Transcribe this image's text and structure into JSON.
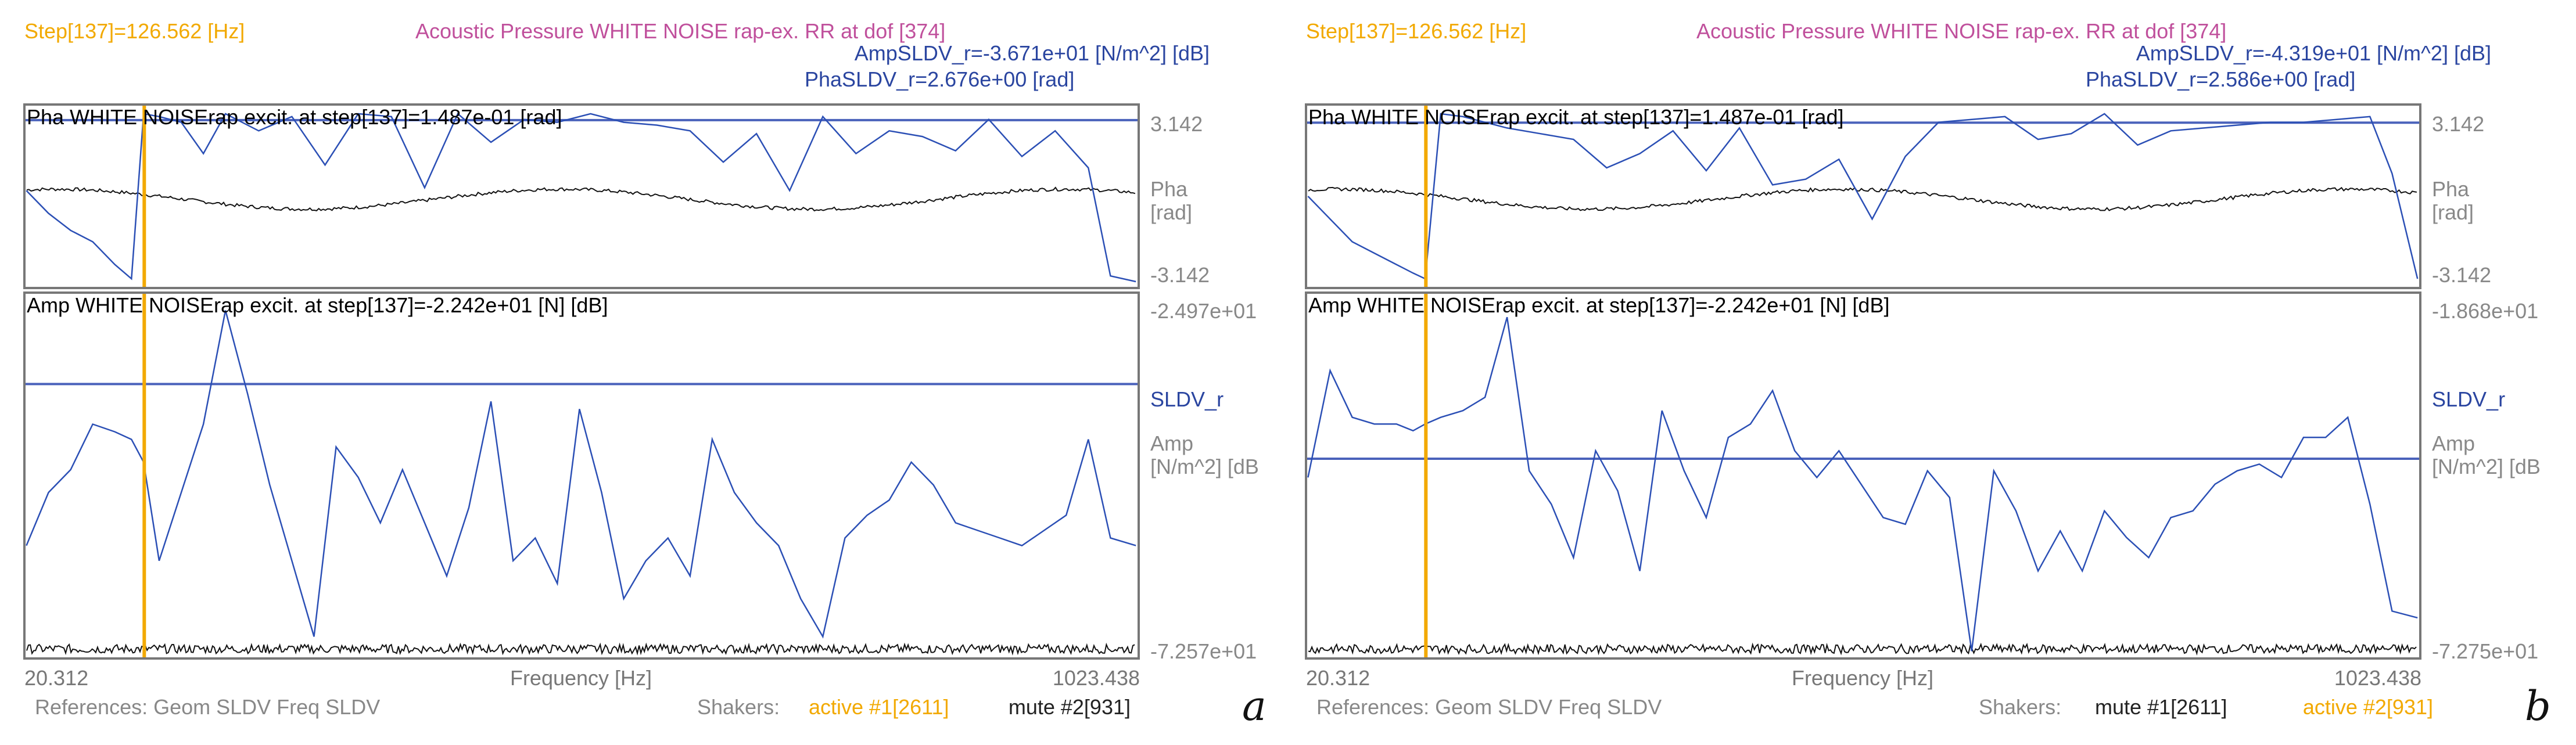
{
  "colors": {
    "step": "#f2a900",
    "title": "#c0509c",
    "blue": "#2a45a0",
    "trace": "#2b4fb5",
    "box": "#777777",
    "grey": "#888888",
    "noise": "#111111",
    "cursor": "#f2a900"
  },
  "panels": [
    {
      "letter": "a",
      "step_label": "Step[137]=126.562 [Hz]",
      "title": "Acoustic Pressure WHITE NOISE rap-ex. RR at dof [374]",
      "amp_readout": "AmpSLDV_r=-3.671e+01 [N/m^2] [dB]",
      "pha_readout": "PhaSLDV_r=2.676e+00 [rad]",
      "pha_plot": {
        "header": "Pha WHITE NOISErap excit. at step[137]=1.487e-01 [rad]",
        "ymax_label": "3.142",
        "ymin_label": "-3.142",
        "side_label_1": "Pha",
        "side_label_2": "[rad]",
        "hline_value": 2.676
      },
      "amp_plot": {
        "header": "Amp WHITE NOISErap excit. at step[137]=-2.242e+01 [N] [dB]",
        "ymax_label": "-2.497e+01",
        "ymin_label": "-7.257e+01",
        "series_label": "SLDV_r",
        "side_label_1": "Amp",
        "side_label_2": "[N/m^2] [dB",
        "hline_value": -36.71
      },
      "x_min_label": "20.312",
      "x_max_label": "1023.438",
      "x_axis_label": "Frequency [Hz]",
      "references": "References: Geom SLDV Freq SLDV",
      "shakers_label": "Shakers:",
      "shaker_1": "active #1[2611]",
      "shaker_1_state": "active",
      "shaker_2": "mute #2[931]",
      "shaker_2_state": "mute"
    },
    {
      "letter": "b",
      "step_label": "Step[137]=126.562 [Hz]",
      "title": "Acoustic Pressure WHITE NOISE rap-ex. RR at dof [374]",
      "amp_readout": "AmpSLDV_r=-4.319e+01 [N/m^2] [dB]",
      "pha_readout": "PhaSLDV_r=2.586e+00 [rad]",
      "pha_plot": {
        "header": "Pha WHITE NOISErap excit. at step[137]=1.487e-01 [rad]",
        "ymax_label": "3.142",
        "ymin_label": "-3.142",
        "side_label_1": "Pha",
        "side_label_2": "[rad]",
        "hline_value": 2.586
      },
      "amp_plot": {
        "header": "Amp WHITE NOISErap excit. at step[137]=-2.242e+01 [N] [dB]",
        "ymax_label": "-1.868e+01",
        "ymin_label": "-7.275e+01",
        "series_label": "SLDV_r",
        "side_label_1": "Amp",
        "side_label_2": "[N/m^2] [dB",
        "hline_value": -43.19
      },
      "x_min_label": "20.312",
      "x_max_label": "1023.438",
      "x_axis_label": "Frequency [Hz]",
      "references": "References: Geom SLDV Freq SLDV",
      "shakers_label": "Shakers:",
      "shaker_1": "mute #1[2611]",
      "shaker_1_state": "mute",
      "shaker_2": "active #2[931]",
      "shaker_2_state": "active"
    }
  ],
  "chart_data": [
    {
      "type": "line",
      "panel": "a",
      "x_label": "Frequency [Hz]",
      "x_range": [
        20.312,
        1023.438
      ],
      "cursor_x": 126.562,
      "subplots": [
        {
          "name": "phase",
          "y_range": [
            -3.142,
            3.142
          ],
          "y_unit": "rad",
          "reference_line": 2.676,
          "series": [
            {
              "name": "SLDV_r",
              "x": [
                20,
                40,
                60,
                80,
                100,
                115,
                126,
                140,
                160,
                180,
                200,
                230,
                260,
                290,
                320,
                350,
                380,
                410,
                440,
                470,
                500,
                530,
                560,
                590,
                620,
                650,
                680,
                710,
                740,
                770,
                800,
                830,
                860,
                890,
                920,
                950,
                980,
                1000,
                1023
              ],
              "y": [
                0.2,
                -0.6,
                -1.2,
                -1.6,
                -2.4,
                -2.9,
                2.9,
                2.8,
                2.6,
                1.5,
                2.9,
                2.3,
                2.8,
                1.1,
                2.9,
                2.8,
                0.3,
                2.9,
                1.9,
                2.7,
                2.6,
                2.9,
                2.6,
                2.5,
                2.3,
                1.2,
                2.2,
                0.2,
                2.8,
                1.5,
                2.3,
                2.1,
                1.6,
                2.7,
                1.4,
                2.3,
                1.0,
                -2.8,
                -3.0
              ]
            }
          ]
        },
        {
          "name": "amplitude",
          "y_range": [
            -72.57,
            -24.97
          ],
          "y_unit": "N/m^2 dB",
          "reference_line": -36.71,
          "series": [
            {
              "name": "SLDV_r",
              "x": [
                20,
                40,
                60,
                80,
                100,
                115,
                126,
                140,
                160,
                180,
                200,
                220,
                240,
                260,
                280,
                300,
                320,
                340,
                360,
                380,
                400,
                420,
                440,
                460,
                480,
                500,
                520,
                540,
                560,
                580,
                600,
                620,
                640,
                660,
                680,
                700,
                720,
                740,
                760,
                780,
                800,
                820,
                840,
                860,
                880,
                900,
                920,
                940,
                960,
                980,
                1000,
                1023
              ],
              "y": [
                -58,
                -51,
                -48,
                -42,
                -43,
                -44,
                -47,
                -60,
                -51,
                -42,
                -27,
                -38,
                -50,
                -60,
                -70,
                -45,
                -49,
                -55,
                -48,
                -55,
                -62,
                -53,
                -39,
                -60,
                -57,
                -63,
                -40,
                -51,
                -65,
                -60,
                -57,
                -62,
                -44,
                -51,
                -55,
                -58,
                -65,
                -70,
                -57,
                -54,
                -52,
                -47,
                -50,
                -55,
                -56,
                -57,
                -58,
                -56,
                -54,
                -44,
                -57,
                -58
              ]
            }
          ]
        }
      ]
    },
    {
      "type": "line",
      "panel": "b",
      "x_label": "Frequency [Hz]",
      "x_range": [
        20.312,
        1023.438
      ],
      "cursor_x": 126.562,
      "subplots": [
        {
          "name": "phase",
          "y_range": [
            -3.142,
            3.142
          ],
          "y_unit": "rad",
          "reference_line": 2.586,
          "series": [
            {
              "name": "SLDV_r",
              "x": [
                20,
                40,
                60,
                80,
                100,
                115,
                126,
                140,
                160,
                180,
                200,
                230,
                260,
                290,
                320,
                350,
                380,
                410,
                440,
                470,
                500,
                530,
                560,
                590,
                620,
                650,
                680,
                710,
                740,
                770,
                800,
                830,
                860,
                890,
                920,
                950,
                980,
                1000,
                1023
              ],
              "y": [
                0.0,
                -0.8,
                -1.6,
                -2.0,
                -2.4,
                -2.7,
                -2.9,
                2.9,
                2.8,
                2.6,
                2.4,
                2.2,
                2.0,
                1.0,
                1.5,
                2.3,
                0.9,
                2.4,
                0.4,
                0.6,
                1.3,
                -0.8,
                1.4,
                2.6,
                2.7,
                2.8,
                2.0,
                2.2,
                2.9,
                1.8,
                2.3,
                2.4,
                2.5,
                2.6,
                2.6,
                2.7,
                2.8,
                0.8,
                -2.9
              ]
            }
          ]
        },
        {
          "name": "amplitude",
          "y_range": [
            -72.75,
            -18.68
          ],
          "y_unit": "N/m^2 dB",
          "reference_line": -43.19,
          "series": [
            {
              "name": "SLDV_r",
              "x": [
                20,
                40,
                60,
                80,
                100,
                115,
                126,
                140,
                160,
                180,
                200,
                220,
                240,
                260,
                280,
                300,
                320,
                340,
                360,
                380,
                400,
                420,
                440,
                460,
                480,
                500,
                520,
                540,
                560,
                580,
                600,
                620,
                640,
                660,
                680,
                700,
                720,
                740,
                760,
                780,
                800,
                820,
                840,
                860,
                880,
                900,
                920,
                940,
                960,
                980,
                1000,
                1023
              ],
              "y": [
                -46,
                -30,
                -37,
                -38,
                -38,
                -39,
                -38,
                -37,
                -36,
                -34,
                -22,
                -45,
                -50,
                -58,
                -42,
                -48,
                -60,
                -36,
                -45,
                -52,
                -40,
                -38,
                -33,
                -42,
                -46,
                -42,
                -47,
                -52,
                -53,
                -45,
                -49,
                -72,
                -45,
                -51,
                -60,
                -54,
                -60,
                -51,
                -55,
                -58,
                -52,
                -51,
                -47,
                -45,
                -44,
                -46,
                -40,
                -40,
                -37,
                -50,
                -66,
                -67
              ]
            }
          ]
        }
      ]
    }
  ]
}
